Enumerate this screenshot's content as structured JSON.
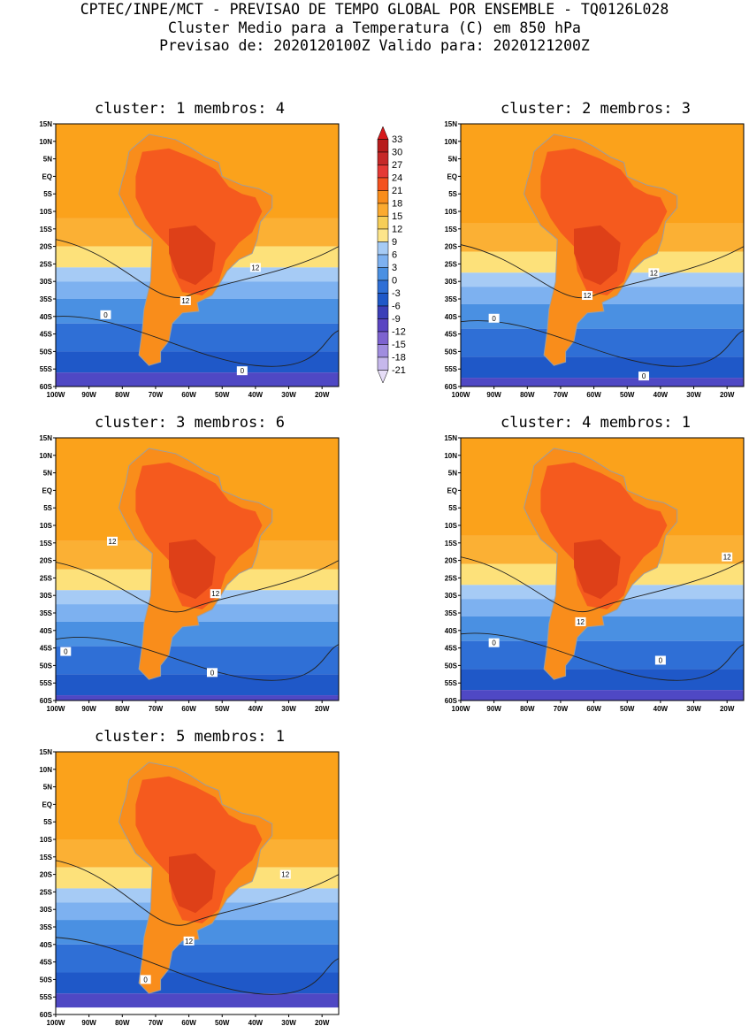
{
  "header": {
    "line1": "CPTEC/INPE/MCT - PREVISAO DE TEMPO GLOBAL POR ENSEMBLE - TQ0126L028",
    "line2": "Cluster Medio para a Temperatura (C) em 850 hPa",
    "line3": "Previsao de: 2020120100Z   Valido para: 2020121200Z"
  },
  "axes": {
    "lat_labels": [
      "15N",
      "10N",
      "5N",
      "EQ",
      "5S",
      "10S",
      "15S",
      "20S",
      "25S",
      "30S",
      "35S",
      "40S",
      "45S",
      "50S",
      "55S",
      "60S"
    ],
    "lon_labels": [
      "100W",
      "90W",
      "80W",
      "70W",
      "60W",
      "50W",
      "40W",
      "30W",
      "20W"
    ]
  },
  "colorbar": {
    "labels": [
      "33",
      "30",
      "27",
      "24",
      "21",
      "18",
      "15",
      "12",
      "9",
      "6",
      "3",
      "0",
      "-3",
      "-6",
      "-9",
      "-12",
      "-15",
      "-18",
      "-21"
    ],
    "colors": [
      "#d7191c",
      "#b71c1c",
      "#c62828",
      "#e53935",
      "#f4511e",
      "#f98d1b",
      "#fbaa2f",
      "#f6ce58",
      "#fde58a",
      "#a6cbf5",
      "#7db1f0",
      "#4a90e2",
      "#2f6fd6",
      "#1f58c8",
      "#3b3fb8",
      "#5a45c2",
      "#7d63d0",
      "#a08ddf",
      "#c6b8ec",
      "#e6ddf7"
    ]
  },
  "panels": [
    {
      "title": "cluster: 1   membros: 4",
      "labels": [
        {
          "t": "12"
        },
        {
          "t": "12"
        },
        {
          "t": "0"
        },
        {
          "t": "0"
        }
      ]
    },
    {
      "title": "cluster: 2   membros: 3",
      "labels": [
        {
          "t": "12"
        },
        {
          "t": "12"
        },
        {
          "t": "0"
        },
        {
          "t": "0"
        }
      ]
    },
    {
      "title": "cluster: 3   membros: 6",
      "labels": [
        {
          "t": "12"
        },
        {
          "t": "12"
        },
        {
          "t": "0"
        },
        {
          "t": "0"
        }
      ]
    },
    {
      "title": "cluster: 4   membros: 1",
      "labels": [
        {
          "t": "12"
        },
        {
          "t": "12"
        },
        {
          "t": "0"
        },
        {
          "t": "0"
        }
      ]
    },
    {
      "title": "cluster: 5   membros: 1",
      "labels": [
        {
          "t": "12"
        },
        {
          "t": "12"
        },
        {
          "t": "0"
        }
      ]
    }
  ]
}
